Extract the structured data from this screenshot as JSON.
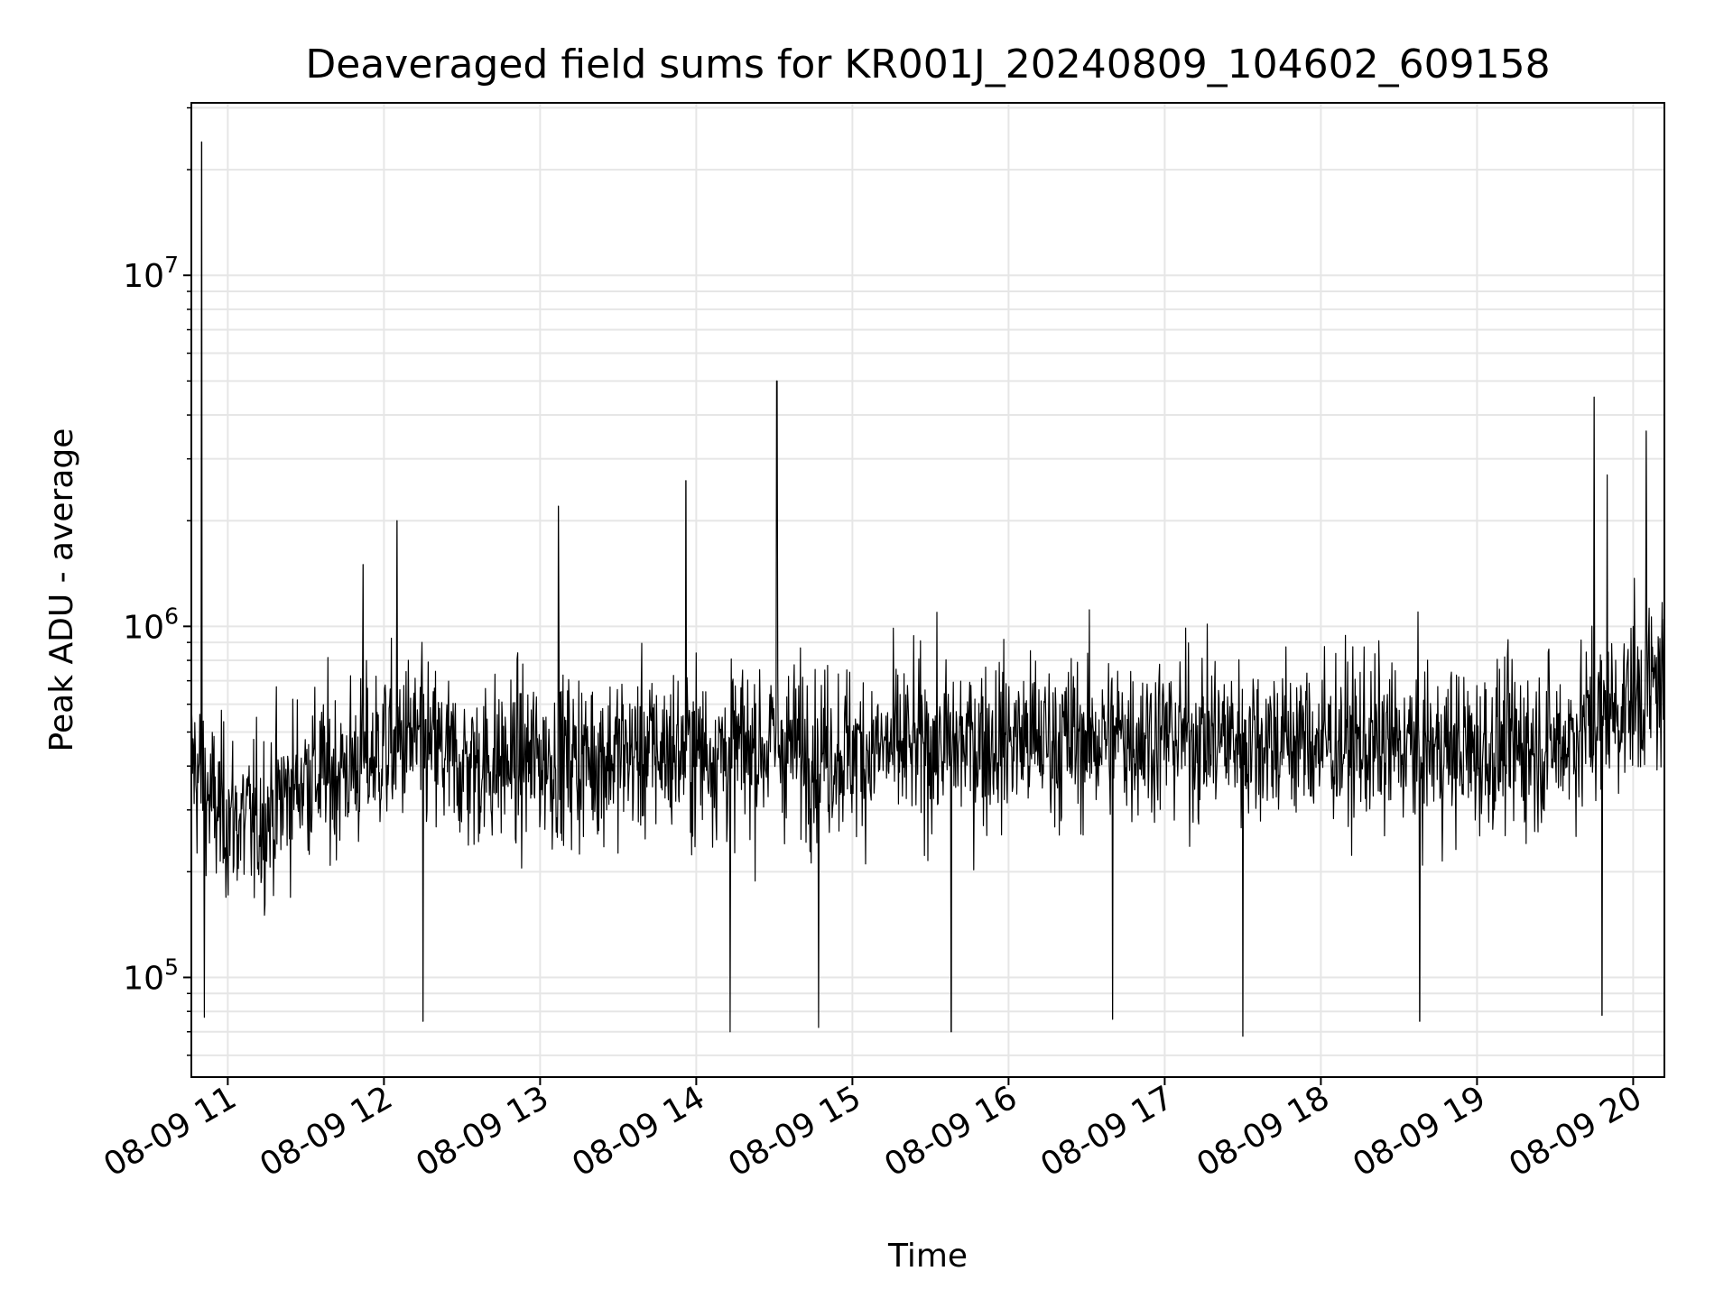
{
  "chart_data": {
    "type": "line",
    "title": "Deaveraged field sums for KR001J_20240809_104602_609158",
    "xlabel": "Time",
    "ylabel": "Peak ADU - average",
    "yscale": "log",
    "ylim": [
      52000,
      31000000
    ],
    "xlim": [
      "2024-08-09 10:46",
      "2024-08-09 20:12"
    ],
    "grid": true,
    "grid_minor": true,
    "line_color": "#000000",
    "x_ticks": [
      {
        "value": "2024-08-09 11:00",
        "label": "08-09 11"
      },
      {
        "value": "2024-08-09 12:00",
        "label": "08-09 12"
      },
      {
        "value": "2024-08-09 13:00",
        "label": "08-09 13"
      },
      {
        "value": "2024-08-09 14:00",
        "label": "08-09 14"
      },
      {
        "value": "2024-08-09 15:00",
        "label": "08-09 15"
      },
      {
        "value": "2024-08-09 16:00",
        "label": "08-09 16"
      },
      {
        "value": "2024-08-09 17:00",
        "label": "08-09 17"
      },
      {
        "value": "2024-08-09 18:00",
        "label": "08-09 18"
      },
      {
        "value": "2024-08-09 19:00",
        "label": "08-09 19"
      },
      {
        "value": "2024-08-09 20:00",
        "label": "08-09 20"
      }
    ],
    "y_ticks": [
      {
        "value": 100000,
        "base": "10",
        "exp": "5"
      },
      {
        "value": 1000000,
        "base": "10",
        "exp": "6"
      },
      {
        "value": 10000000,
        "base": "10",
        "exp": "7"
      }
    ],
    "series": [
      {
        "x": [
          "2024-08-09 10:46",
          "2024-08-09 10:50",
          "2024-08-09 10:51",
          "2024-08-09 10:55",
          "2024-08-09 11:10",
          "2024-08-09 11:30",
          "2024-08-09 11:40",
          "2024-08-09 11:52",
          "2024-08-09 12:00",
          "2024-08-09 12:05",
          "2024-08-09 12:10",
          "2024-08-09 12:15",
          "2024-08-09 12:30",
          "2024-08-09 13:00",
          "2024-08-09 13:07",
          "2024-08-09 13:15",
          "2024-08-09 13:40",
          "2024-08-09 13:56",
          "2024-08-09 14:10",
          "2024-08-09 14:13",
          "2024-08-09 14:30",
          "2024-08-09 14:31",
          "2024-08-09 14:47",
          "2024-08-09 15:00",
          "2024-08-09 15:20",
          "2024-08-09 15:38",
          "2024-08-09 15:50",
          "2024-08-09 16:00",
          "2024-08-09 16:20",
          "2024-08-09 16:40",
          "2024-08-09 16:42",
          "2024-08-09 17:00",
          "2024-08-09 17:30",
          "2024-08-09 17:33",
          "2024-08-09 17:40",
          "2024-08-09 18:00",
          "2024-08-09 18:38",
          "2024-08-09 18:40",
          "2024-08-09 19:00",
          "2024-08-09 19:20",
          "2024-08-09 19:30",
          "2024-08-09 19:45",
          "2024-08-09 19:48",
          "2024-08-09 19:50",
          "2024-08-09 20:00",
          "2024-08-09 20:05",
          "2024-08-09 20:12"
        ],
        "y": [
          420000,
          24000000,
          77000,
          300000,
          270000,
          380000,
          380000,
          1500000,
          500000,
          2000000,
          480000,
          75000,
          400000,
          420000,
          2200000,
          420000,
          440000,
          2600000,
          440000,
          70000,
          460000,
          5000000,
          72000,
          440000,
          450000,
          70000,
          470000,
          480000,
          470000,
          76000,
          490000,
          490000,
          68000,
          480000,
          480000,
          470000,
          75000,
          450000,
          440000,
          460000,
          460000,
          4500000,
          78000,
          2700000,
          1000000,
          3600000,
          700000
        ]
      }
    ]
  }
}
